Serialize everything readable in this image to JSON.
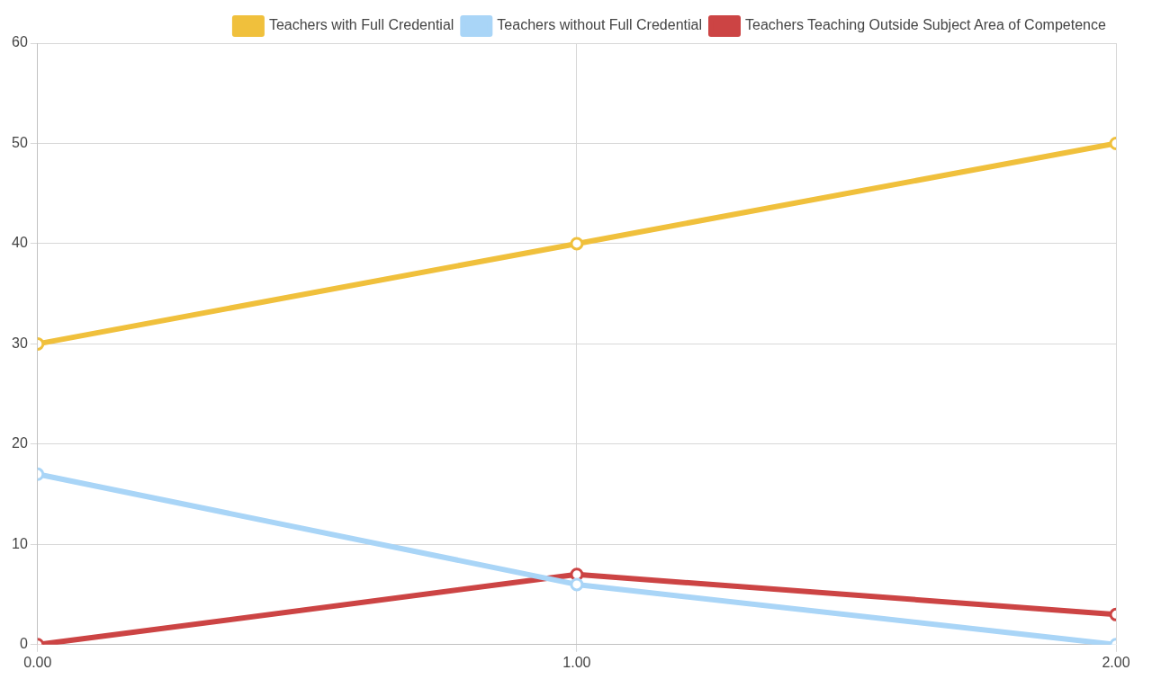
{
  "chart_data": {
    "type": "line",
    "x": [
      0,
      1,
      2
    ],
    "series": [
      {
        "name": "Teachers with Full Credential",
        "color": "#f0c03c",
        "values": [
          30,
          40,
          50
        ]
      },
      {
        "name": "Teachers without Full Credential",
        "color": "#a9d5f7",
        "values": [
          17,
          6,
          0
        ]
      },
      {
        "name": "Teachers Teaching Outside Subject Area of Competence",
        "color": "#cc4444",
        "values": [
          0,
          7,
          3
        ]
      }
    ],
    "xlim": [
      0,
      2
    ],
    "xticks": [
      {
        "value": 0,
        "label": "0.00"
      },
      {
        "value": 1,
        "label": "1.00"
      },
      {
        "value": 2,
        "label": "2.00"
      }
    ],
    "ylim": [
      0,
      60
    ],
    "yticks": [
      0,
      10,
      20,
      30,
      40,
      50,
      60
    ],
    "grid": true,
    "legend": "top right",
    "marker": "circle",
    "line_style": "solid"
  }
}
